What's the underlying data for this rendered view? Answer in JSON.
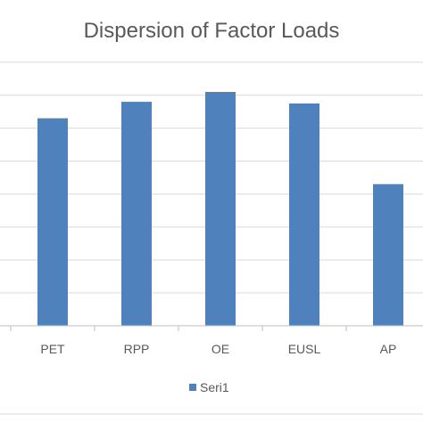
{
  "chart_data": {
    "type": "bar",
    "title": "Dispersion of Factor Loads",
    "xlabel": "",
    "ylabel": "",
    "categories": [
      "PET",
      "RPP",
      "OE",
      "EUSL",
      "AP"
    ],
    "series": [
      {
        "name": "Seri1",
        "values": [
          0.63,
          0.68,
          0.71,
          0.675,
          0.43
        ]
      }
    ],
    "ylim": [
      0,
      1.0
    ],
    "y_gridline_step": 0.1,
    "grid": true,
    "legend_position": "bottom",
    "colors": {
      "bar": "#4F81BD",
      "grid": "#D9D9D9",
      "axis": "#BFBFBF",
      "text": "#595959"
    }
  }
}
